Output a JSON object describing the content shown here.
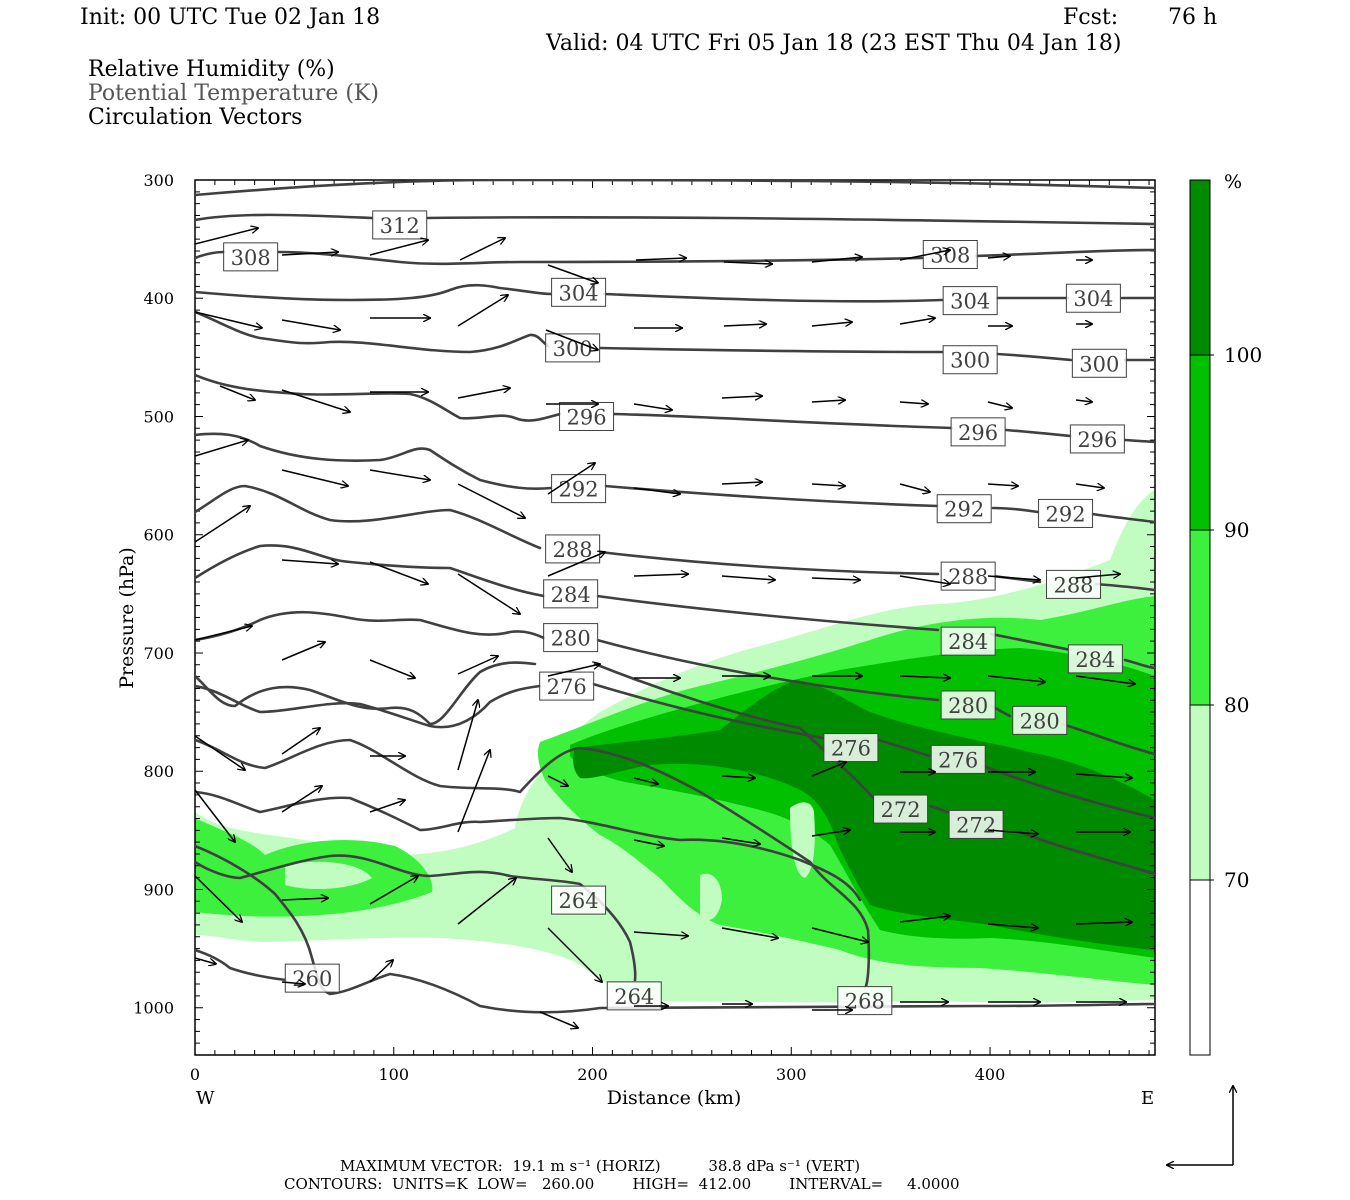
{
  "header": {
    "init": "Init: 00 UTC Tue 02 Jan 18",
    "fcst_label": "Fcst:",
    "fcst_value": "76 h",
    "valid": "Valid: 04 UTC Fri 05 Jan 18 (23 EST Thu 04 Jan 18)"
  },
  "legend": {
    "rh": "Relative Humidity (%)",
    "theta": "Potential Temperature (K)",
    "vectors": "Circulation Vectors"
  },
  "colors": {
    "rh_70": "#c1fcc1",
    "rh_80": "#3ef03e",
    "rh_90": "#00c000",
    "rh_100": "#008a00",
    "contour": "#404040"
  },
  "footer": {
    "max_vector": "MAXIMUM VECTOR:  19.1 m s⁻¹ (HORIZ)          38.8 dPa s⁻¹ (VERT)",
    "contours": "CONTOURS:  UNITS=K  LOW=   260.00        HIGH=  412.00        INTERVAL=     4.0000"
  },
  "chart_data": {
    "type": "cross-section",
    "xlabel": "Distance (km)",
    "ylabel": "Pressure (hPa)",
    "xlim": [
      0,
      483
    ],
    "ylim": [
      1040,
      300
    ],
    "x_ticks": [
      0,
      100,
      200,
      300,
      400
    ],
    "y_ticks": [
      300,
      400,
      500,
      600,
      700,
      800,
      900,
      1000
    ],
    "x_end_labels": {
      "left": "W",
      "right": "E"
    },
    "colorbar": {
      "unit": "%",
      "levels": [
        70,
        80,
        90,
        100
      ]
    },
    "theta_labels": [
      {
        "text": "312",
        "x": 103,
        "p": 338
      },
      {
        "text": "308",
        "x": 28,
        "p": 365
      },
      {
        "text": "308",
        "x": 380,
        "p": 363
      },
      {
        "text": "304",
        "x": 193,
        "p": 395
      },
      {
        "text": "304",
        "x": 390,
        "p": 402
      },
      {
        "text": "304",
        "x": 452,
        "p": 400
      },
      {
        "text": "300",
        "x": 190,
        "p": 442
      },
      {
        "text": "300",
        "x": 390,
        "p": 452
      },
      {
        "text": "300",
        "x": 455,
        "p": 455
      },
      {
        "text": "296",
        "x": 197,
        "p": 500
      },
      {
        "text": "296",
        "x": 394,
        "p": 513
      },
      {
        "text": "296",
        "x": 454,
        "p": 519
      },
      {
        "text": "292",
        "x": 193,
        "p": 561
      },
      {
        "text": "292",
        "x": 387,
        "p": 578
      },
      {
        "text": "292",
        "x": 438,
        "p": 582
      },
      {
        "text": "288",
        "x": 190,
        "p": 612
      },
      {
        "text": "288",
        "x": 389,
        "p": 635
      },
      {
        "text": "288",
        "x": 442,
        "p": 642
      },
      {
        "text": "284",
        "x": 189,
        "p": 650
      },
      {
        "text": "284",
        "x": 389,
        "p": 690
      },
      {
        "text": "284",
        "x": 453,
        "p": 705
      },
      {
        "text": "280",
        "x": 189,
        "p": 687
      },
      {
        "text": "280",
        "x": 389,
        "p": 744
      },
      {
        "text": "280",
        "x": 425,
        "p": 757
      },
      {
        "text": "276",
        "x": 187,
        "p": 728
      },
      {
        "text": "276",
        "x": 330,
        "p": 780
      },
      {
        "text": "276",
        "x": 384,
        "p": 790
      },
      {
        "text": "272",
        "x": 355,
        "p": 832
      },
      {
        "text": "272",
        "x": 393,
        "p": 845
      },
      {
        "text": "264",
        "x": 193,
        "p": 909
      },
      {
        "text": "264",
        "x": 221,
        "p": 990
      },
      {
        "text": "260",
        "x": 59,
        "p": 975
      },
      {
        "text": "268",
        "x": 337,
        "p": 994
      }
    ]
  }
}
